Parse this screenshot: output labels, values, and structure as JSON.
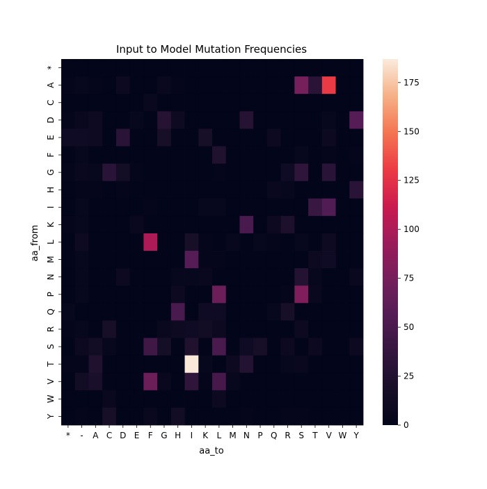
{
  "chart_data": {
    "type": "heatmap",
    "title": "Input to Model Mutation Frequencies",
    "xlabel": "aa_to",
    "ylabel": "aa_from",
    "x_categories": [
      "*",
      "-",
      "A",
      "C",
      "D",
      "E",
      "F",
      "G",
      "H",
      "I",
      "K",
      "L",
      "M",
      "N",
      "P",
      "Q",
      "R",
      "S",
      "T",
      "V",
      "W",
      "Y"
    ],
    "y_categories": [
      "*",
      "A",
      "C",
      "D",
      "E",
      "F",
      "G",
      "H",
      "I",
      "K",
      "L",
      "M",
      "N",
      "P",
      "Q",
      "R",
      "S",
      "T",
      "V",
      "W",
      "Y"
    ],
    "values": [
      [
        0,
        0,
        0,
        0,
        0,
        0,
        0,
        0,
        0,
        0,
        0,
        0,
        0,
        0,
        0,
        0,
        0,
        0,
        0,
        0,
        0,
        0
      ],
      [
        2,
        4,
        2,
        0,
        8,
        0,
        0,
        5,
        2,
        0,
        0,
        0,
        0,
        0,
        0,
        0,
        0,
        75,
        30,
        130,
        0,
        0
      ],
      [
        0,
        0,
        0,
        0,
        0,
        0,
        6,
        0,
        0,
        0,
        0,
        0,
        0,
        0,
        0,
        0,
        0,
        0,
        0,
        0,
        0,
        0
      ],
      [
        2,
        6,
        10,
        0,
        0,
        4,
        0,
        28,
        10,
        0,
        0,
        0,
        0,
        28,
        0,
        0,
        0,
        0,
        0,
        4,
        0,
        58
      ],
      [
        12,
        12,
        10,
        0,
        30,
        0,
        0,
        18,
        0,
        0,
        18,
        0,
        0,
        0,
        0,
        8,
        0,
        0,
        0,
        8,
        0,
        0
      ],
      [
        0,
        4,
        0,
        0,
        0,
        0,
        0,
        0,
        0,
        0,
        0,
        24,
        0,
        0,
        0,
        0,
        0,
        4,
        0,
        2,
        0,
        2
      ],
      [
        2,
        6,
        4,
        30,
        15,
        2,
        0,
        0,
        0,
        0,
        0,
        2,
        0,
        0,
        0,
        0,
        12,
        35,
        0,
        30,
        0,
        0
      ],
      [
        0,
        2,
        2,
        0,
        2,
        0,
        0,
        0,
        0,
        0,
        0,
        0,
        0,
        0,
        0,
        6,
        4,
        0,
        0,
        0,
        0,
        30
      ],
      [
        0,
        4,
        0,
        0,
        0,
        0,
        2,
        0,
        0,
        0,
        4,
        4,
        0,
        0,
        0,
        0,
        0,
        0,
        40,
        55,
        0,
        0
      ],
      [
        2,
        4,
        0,
        0,
        0,
        6,
        0,
        0,
        0,
        0,
        0,
        0,
        0,
        50,
        0,
        8,
        22,
        0,
        0,
        0,
        0,
        0
      ],
      [
        0,
        10,
        0,
        0,
        0,
        0,
        100,
        0,
        0,
        18,
        2,
        0,
        4,
        0,
        4,
        2,
        0,
        4,
        0,
        10,
        0,
        0
      ],
      [
        0,
        4,
        0,
        0,
        0,
        0,
        0,
        0,
        0,
        58,
        2,
        2,
        0,
        0,
        0,
        0,
        0,
        0,
        8,
        12,
        0,
        0
      ],
      [
        0,
        4,
        0,
        0,
        8,
        0,
        0,
        0,
        4,
        4,
        6,
        0,
        0,
        0,
        0,
        0,
        0,
        26,
        4,
        0,
        0,
        6
      ],
      [
        0,
        4,
        0,
        0,
        0,
        0,
        0,
        0,
        8,
        0,
        0,
        70,
        0,
        0,
        0,
        0,
        2,
        80,
        6,
        0,
        0,
        0
      ],
      [
        4,
        0,
        0,
        0,
        0,
        0,
        0,
        0,
        50,
        0,
        12,
        12,
        0,
        0,
        0,
        4,
        18,
        0,
        0,
        0,
        0,
        0
      ],
      [
        2,
        4,
        0,
        18,
        0,
        0,
        0,
        6,
        10,
        12,
        14,
        8,
        0,
        0,
        0,
        0,
        0,
        8,
        0,
        0,
        0,
        0
      ],
      [
        0,
        8,
        14,
        4,
        0,
        0,
        44,
        16,
        0,
        24,
        0,
        50,
        0,
        12,
        18,
        0,
        8,
        0,
        8,
        0,
        0,
        8
      ],
      [
        2,
        2,
        24,
        0,
        0,
        0,
        0,
        0,
        0,
        186,
        4,
        0,
        8,
        26,
        0,
        0,
        4,
        6,
        0,
        0,
        0,
        0
      ],
      [
        0,
        14,
        20,
        0,
        0,
        0,
        70,
        6,
        0,
        34,
        2,
        48,
        4,
        0,
        0,
        0,
        0,
        0,
        0,
        0,
        0,
        0
      ],
      [
        0,
        0,
        0,
        6,
        0,
        0,
        0,
        0,
        0,
        0,
        0,
        8,
        0,
        0,
        0,
        0,
        0,
        0,
        0,
        0,
        0,
        0
      ],
      [
        0,
        2,
        0,
        18,
        0,
        0,
        6,
        0,
        14,
        0,
        0,
        0,
        0,
        2,
        0,
        0,
        2,
        2,
        0,
        0,
        0,
        0
      ]
    ],
    "colorbar": {
      "range": [
        0,
        187
      ],
      "ticks": [
        "0",
        "25",
        "50",
        "75",
        "100",
        "125",
        "150",
        "175"
      ],
      "tick_values": [
        0,
        25,
        50,
        75,
        100,
        125,
        150,
        175
      ],
      "colormap": "rocket"
    }
  }
}
